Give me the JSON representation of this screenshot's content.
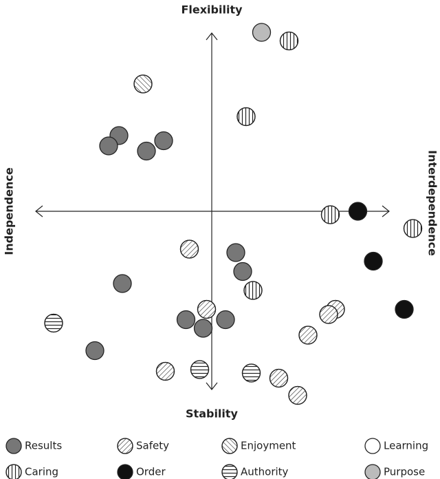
{
  "chart_data": {
    "type": "scatter",
    "top_label": "Flexibility",
    "bottom_label": "Stability",
    "left_label": "Independence",
    "right_label": "Interdependence",
    "xlim": [
      -12,
      12
    ],
    "ylim": [
      -12,
      12
    ],
    "series": [
      {
        "name": "Results",
        "color": "#777777",
        "hatch": "none",
        "x": [
          -5.4,
          -6.0,
          -2.8,
          -3.8,
          1.4,
          1.8,
          -5.2,
          -1.5,
          -0.5,
          0.8,
          -6.8
        ],
        "y": [
          4.4,
          3.8,
          4.1,
          3.5,
          -2.4,
          -3.5,
          -4.2,
          -6.3,
          -6.8,
          -6.3,
          -8.1
        ]
      },
      {
        "name": "Safety",
        "color": "#ffffff",
        "hatch": "diagonal-up",
        "x": [
          -1.3,
          -0.3,
          7.2,
          6.8,
          5.6,
          -2.7,
          3.9,
          5.0
        ],
        "y": [
          -2.2,
          -5.7,
          -5.7,
          -6.0,
          -7.2,
          -9.3,
          -9.7,
          -10.7
        ]
      },
      {
        "name": "Enjoyment",
        "color": "#ffffff",
        "hatch": "diagonal-down",
        "x": [
          -4.0
        ],
        "y": [
          7.4
        ]
      },
      {
        "name": "Learning",
        "color": "#ffffff",
        "hatch": "none",
        "x": [],
        "y": []
      },
      {
        "name": "Caring",
        "color": "#ffffff",
        "hatch": "vertical",
        "x": [
          4.5,
          2.0,
          6.9,
          11.7,
          2.4
        ],
        "y": [
          9.9,
          5.5,
          -0.2,
          -1.0,
          -4.6
        ]
      },
      {
        "name": "Order",
        "color": "#111111",
        "hatch": "none",
        "x": [
          8.5,
          9.4,
          11.2
        ],
        "y": [
          0,
          -2.9,
          -5.7
        ]
      },
      {
        "name": "Authority",
        "color": "#ffffff",
        "hatch": "horizontal",
        "x": [
          -9.2,
          -0.7,
          2.3
        ],
        "y": [
          -6.5,
          -9.2,
          -9.4
        ]
      },
      {
        "name": "Purpose",
        "color": "#bbbbbb",
        "hatch": "none",
        "x": [
          2.9
        ],
        "y": [
          10.4
        ]
      }
    ]
  }
}
